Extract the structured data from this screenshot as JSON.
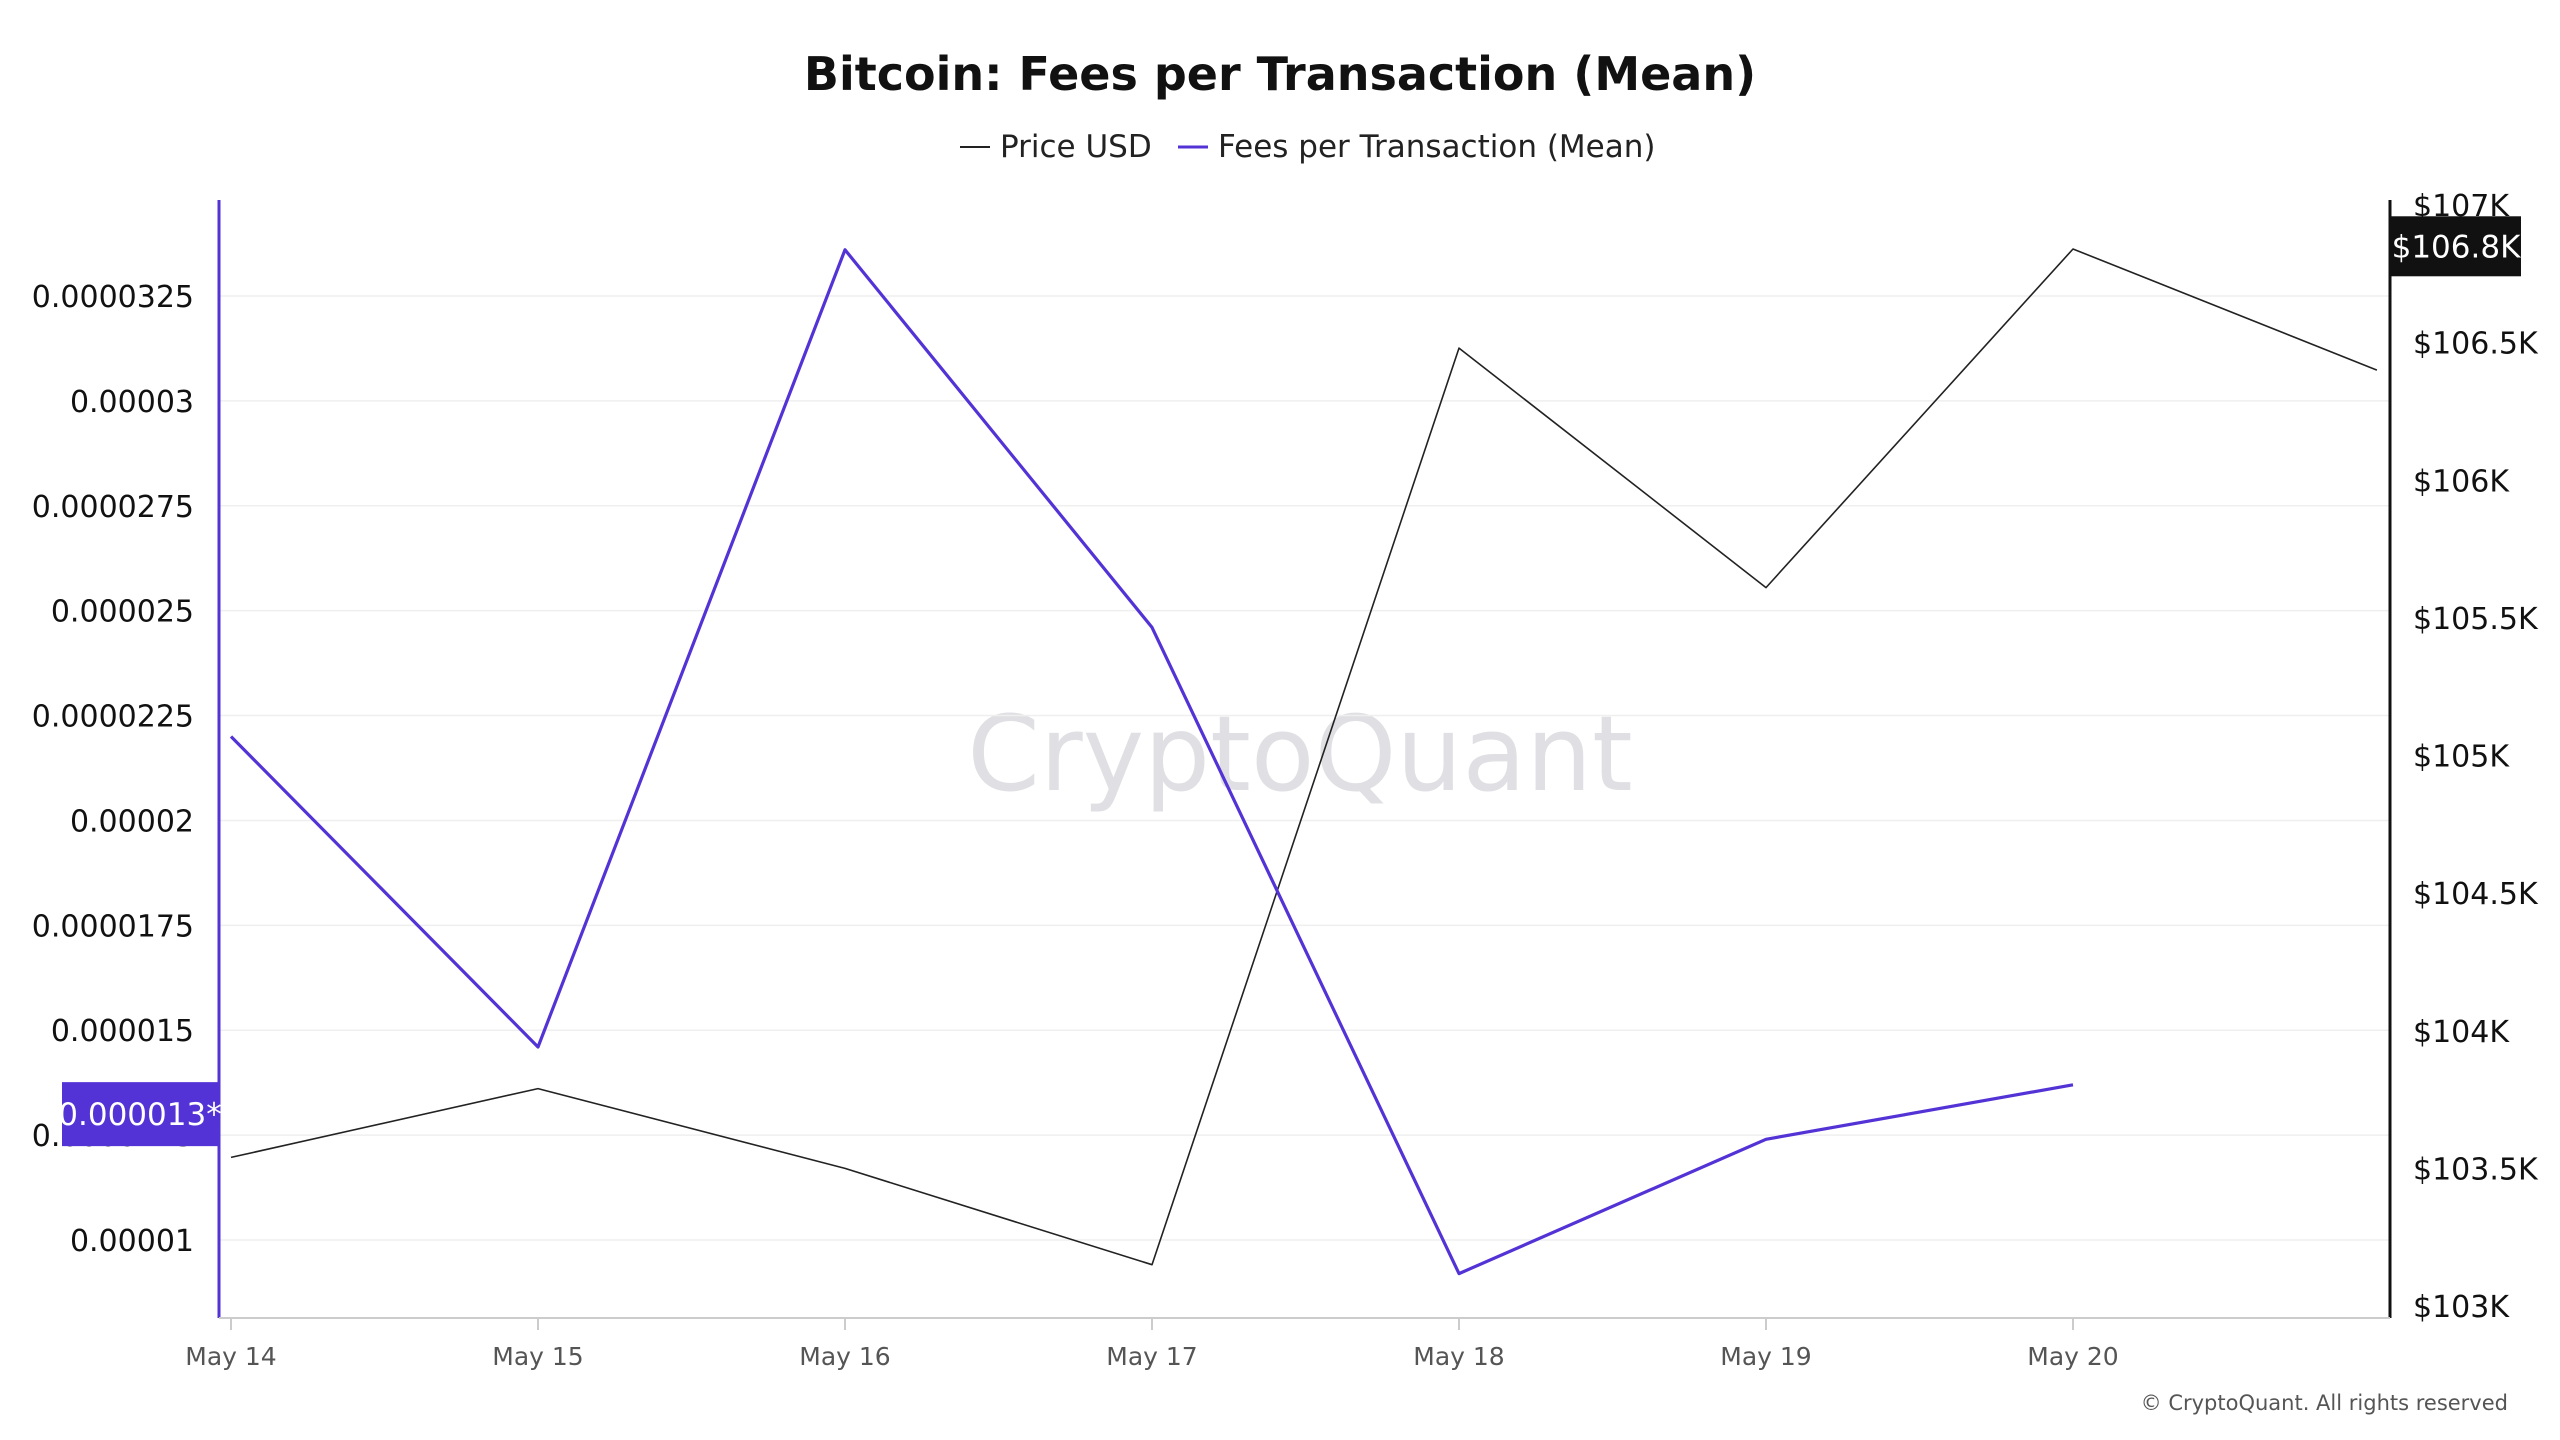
{
  "chart_data": {
    "type": "line",
    "title": "Bitcoin: Fees per Transaction (Mean)",
    "categories": [
      "May 14",
      "May 15",
      "May 16",
      "May 17",
      "May 18",
      "May 19",
      "May 20"
    ],
    "left_axis": {
      "ticks": [
        {
          "value": 1e-05,
          "label": "0.00001"
        },
        {
          "value": 1.25e-05,
          "label": "0.0000125"
        },
        {
          "value": 1.5e-05,
          "label": "0.000015"
        },
        {
          "value": 1.75e-05,
          "label": "0.0000175"
        },
        {
          "value": 2e-05,
          "label": "0.00002"
        },
        {
          "value": 2.25e-05,
          "label": "0.0000225"
        },
        {
          "value": 2.5e-05,
          "label": "0.000025"
        },
        {
          "value": 2.75e-05,
          "label": "0.0000275"
        },
        {
          "value": 3e-05,
          "label": "0.00003"
        },
        {
          "value": 3.25e-05,
          "label": "0.0000325"
        }
      ],
      "badge_value": 1.3e-05,
      "badge_label": "0.000013*",
      "color": "#5333d6"
    },
    "right_axis": {
      "ticks": [
        {
          "value": 103000,
          "label": "$103K"
        },
        {
          "value": 103500,
          "label": "$103.5K"
        },
        {
          "value": 104000,
          "label": "$104K"
        },
        {
          "value": 104500,
          "label": "$104.5K"
        },
        {
          "value": 105000,
          "label": "$105K"
        },
        {
          "value": 105500,
          "label": "$105.5K"
        },
        {
          "value": 106000,
          "label": "$106K"
        },
        {
          "value": 106500,
          "label": "$106.5K"
        },
        {
          "value": 107000,
          "label": "$107K"
        }
      ],
      "badge_value": 106850,
      "badge_label": "$106.8K",
      "color": "#111111"
    },
    "series": [
      {
        "name": "Price USD",
        "axis": "right",
        "color": "#222222",
        "x": [
          0,
          1,
          2,
          3,
          4,
          5,
          6,
          6.99
        ],
        "values": [
          103540,
          103790,
          103500,
          103150,
          106480,
          105610,
          106840,
          106400
        ]
      },
      {
        "name": "Fees per Transaction (Mean)",
        "axis": "left",
        "color": "#5333d6",
        "x": [
          0,
          1,
          2,
          3,
          4,
          5,
          6
        ],
        "values": [
          2.2e-05,
          1.46e-05,
          3.36e-05,
          2.46e-05,
          9.2e-06,
          1.24e-05,
          1.37e-05
        ]
      }
    ],
    "legend_position": "top-center",
    "grid": true
  },
  "watermark": "CryptoQuant",
  "copyright": "© CryptoQuant. All rights reserved"
}
